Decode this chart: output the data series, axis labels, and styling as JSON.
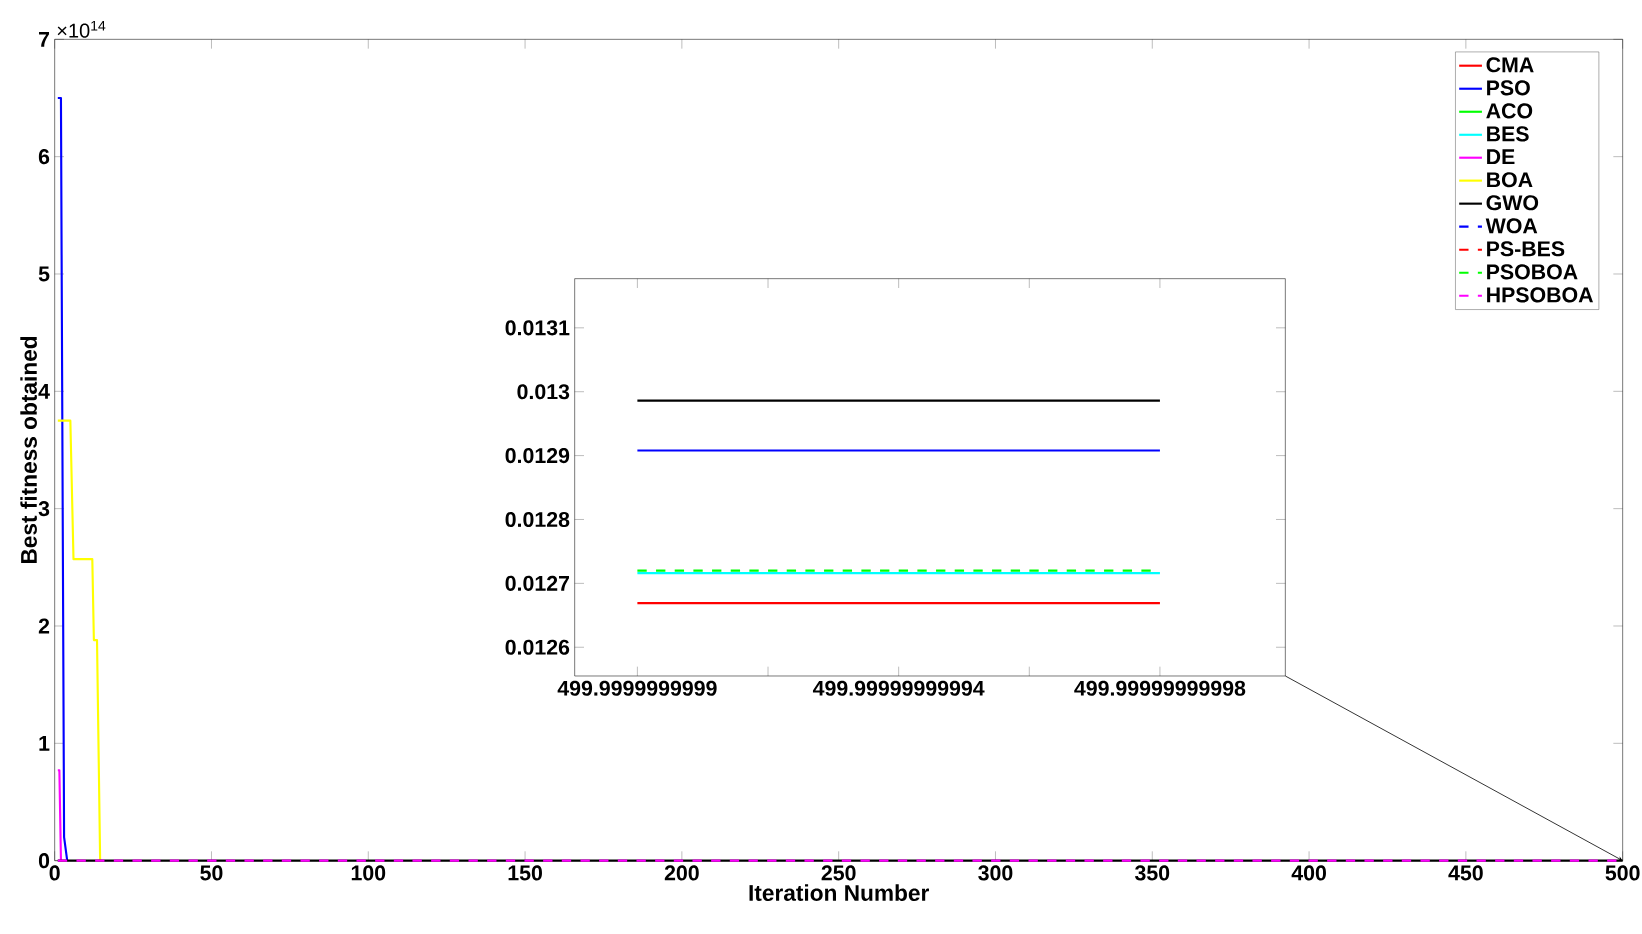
{
  "chart_data": [
    {
      "type": "line",
      "xlabel": "Iteration Number",
      "ylabel": "Best fitness obtained",
      "annotations": [
        "×10$^{14}$"
      ],
      "xlim": [
        0,
        500
      ],
      "ylim": [
        0,
        7
      ],
      "xticks": [
        0,
        50,
        100,
        150,
        200,
        250,
        300,
        350,
        400,
        450,
        500
      ],
      "yticks": [
        0,
        1,
        2,
        3,
        4,
        5,
        6,
        7
      ],
      "legend": "top right",
      "series": [
        {
          "name": "CMA",
          "color": "#ff0000",
          "line_style": "solid"
        },
        {
          "name": "PSO",
          "color": "#0000ff",
          "line_style": "solid",
          "x": [
            1,
            2,
            3,
            4
          ],
          "values": [
            6.5,
            6.5,
            0.2,
            0
          ]
        },
        {
          "name": "ACO",
          "color": "#00ff00",
          "line_style": "solid"
        },
        {
          "name": "BES",
          "color": "#00ffff",
          "line_style": "solid"
        },
        {
          "name": "DE",
          "color": "#ff00ff",
          "line_style": "solid",
          "x": [
            1,
            1.5,
            2
          ],
          "values": [
            0.77,
            0.77,
            0
          ]
        },
        {
          "name": "BOA",
          "color": "#ffff00",
          "line_style": "solid",
          "x": [
            1,
            5,
            6,
            12,
            12.5,
            13.5,
            14.5
          ],
          "values": [
            3.75,
            3.75,
            2.57,
            2.57,
            1.88,
            1.88,
            0
          ]
        },
        {
          "name": "GWO",
          "color": "#000000",
          "line_style": "solid",
          "x": [
            1,
            500
          ],
          "values": [
            0,
            0
          ]
        },
        {
          "name": "WOA",
          "color": "#0000ff",
          "line_style": "dashed"
        },
        {
          "name": "PS-BES",
          "color": "#ff0000",
          "line_style": "dashed"
        },
        {
          "name": "PSOBOA",
          "color": "#00ff00",
          "line_style": "dashed"
        },
        {
          "name": "HPSOBOA",
          "color": "#ff00ff",
          "line_style": "dashed",
          "x": [
            1,
            500
          ],
          "values": [
            0,
            0
          ]
        }
      ]
    },
    {
      "type": "line",
      "categories": [
        "499.9999999999",
        null,
        "499.99999999994",
        null,
        "499.99999999998"
      ],
      "ylim": [
        0.012555,
        0.013177
      ],
      "yticks": [
        0.0126,
        0.0127,
        0.0128,
        0.0129,
        0.013,
        0.0131
      ],
      "series": [
        {
          "color": "#000000",
          "line_style": "solid",
          "values": [
            0.012986,
            0.012986,
            0.012986,
            0.012986,
            0.012986
          ]
        },
        {
          "color": "#0000ff",
          "line_style": "solid",
          "values": [
            0.012908,
            0.012908,
            0.012908,
            0.012908,
            0.012908
          ]
        },
        {
          "color": "#00ffff",
          "line_style": "solid",
          "values": [
            0.012716,
            0.012716,
            0.012716,
            0.012716,
            0.012716
          ]
        },
        {
          "color": "#00ff00",
          "line_style": "dashed",
          "values": [
            0.01272,
            0.01272,
            0.01272,
            0.01272,
            0.01272
          ]
        },
        {
          "color": "#ff0000",
          "line_style": "solid",
          "values": [
            0.012669,
            0.012669,
            0.012669,
            0.012669,
            0.012669
          ]
        }
      ]
    }
  ]
}
